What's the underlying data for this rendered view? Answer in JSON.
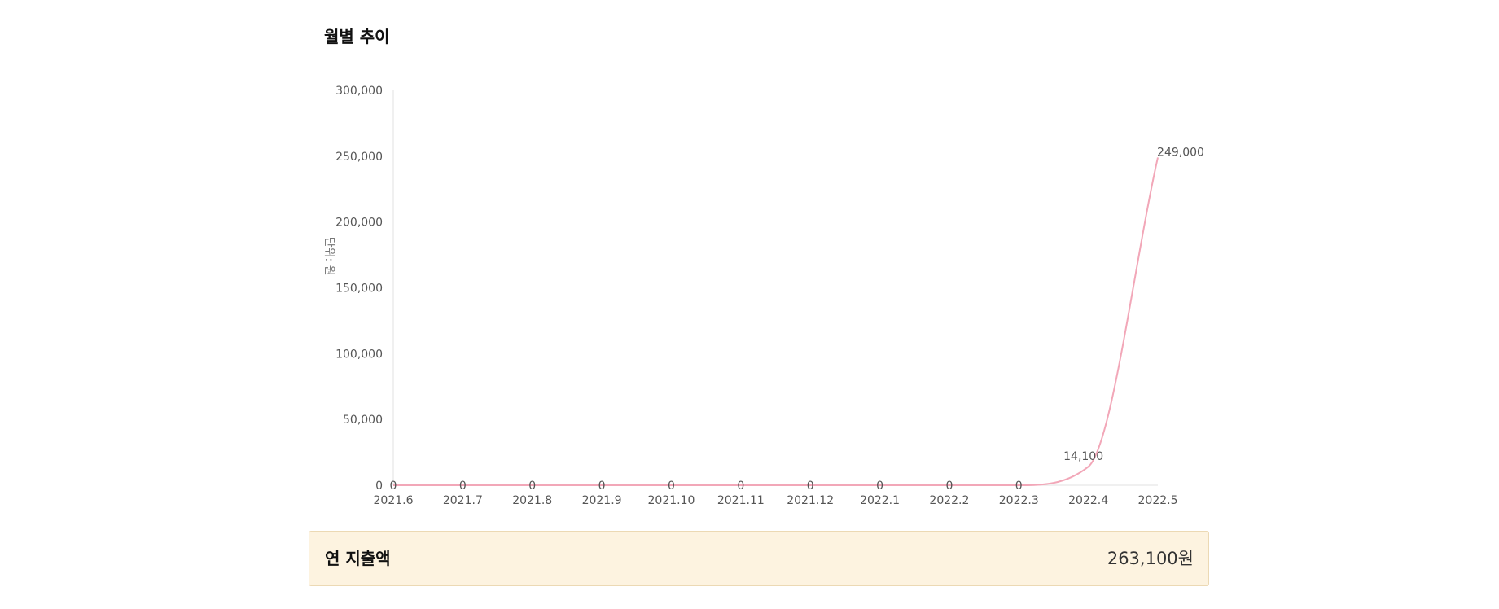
{
  "section": {
    "title": "월별 추이"
  },
  "chart_data": {
    "type": "line",
    "title": "",
    "xlabel": "",
    "ylabel": "단위: 원",
    "categories": [
      "2021.6",
      "2021.7",
      "2021.8",
      "2021.9",
      "2021.10",
      "2021.11",
      "2021.12",
      "2022.1",
      "2022.2",
      "2022.3",
      "2022.4",
      "2022.5"
    ],
    "series": [
      {
        "values": [
          0,
          0,
          0,
          0,
          0,
          0,
          0,
          0,
          0,
          0,
          14100,
          249000
        ],
        "data_labels": [
          "0",
          "0",
          "0",
          "0",
          "0",
          "0",
          "0",
          "0",
          "0",
          "0",
          "14,100",
          "249,000"
        ]
      }
    ],
    "ylim": [
      0,
      300000
    ],
    "yticks": [
      0,
      50000,
      100000,
      150000,
      200000,
      250000,
      300000
    ],
    "ytick_labels": [
      "0",
      "50,000",
      "100,000",
      "150,000",
      "200,000",
      "250,000",
      "300,000"
    ],
    "grid": false,
    "line_color": "#f2a7b8",
    "axis_color": "#e2e2e2"
  },
  "summary": {
    "label": "연 지출액",
    "value": "263,100원"
  }
}
